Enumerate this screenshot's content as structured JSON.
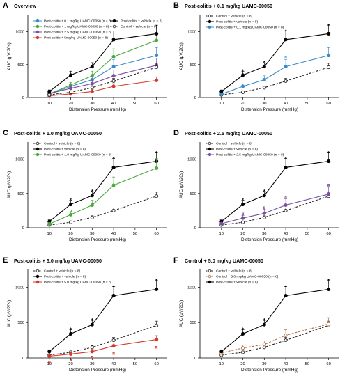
{
  "colors": {
    "control": "#222222",
    "vehicle": "#000000",
    "d01": "#3a8cc8",
    "d10": "#49a83a",
    "d25": "#7a4fa0",
    "d50": "#d33a2a",
    "ctl50": "#b06a3a"
  },
  "chart_data": [
    {
      "letter": "A",
      "title": "Overview",
      "type": "line",
      "xlabel": "Distension Pressure (mmHg)",
      "ylabel": "AUC (μV/20s)",
      "x": [
        10,
        20,
        30,
        40,
        60
      ],
      "xlim": [
        0,
        65
      ],
      "xticks": [
        10,
        20,
        30,
        40,
        50,
        60
      ],
      "ylim": [
        0,
        1250
      ],
      "yticks": [
        0,
        500,
        1000
      ],
      "legend_position": "top",
      "series": [
        {
          "key": "d01",
          "name": "Post-colitis + 0.1 mg/kg UAMC-00050 (n = 8)",
          "style": "solid",
          "color_key": "d01",
          "marker": "filled",
          "values": [
            50,
            170,
            270,
            470,
            640
          ],
          "err": [
            18,
            35,
            60,
            110,
            120
          ]
        },
        {
          "key": "d10",
          "name": "Post-colitis + 1 mg/kg UAMC-00050 (n = 8)",
          "style": "solid",
          "color_key": "d10",
          "marker": "filled",
          "values": [
            55,
            190,
            330,
            620,
            870
          ],
          "err": [
            20,
            40,
            70,
            120,
            140
          ]
        },
        {
          "key": "d25",
          "name": "Post-colitis + 2.5 mg/kg UAMC-00050 (n = 8)",
          "style": "solid",
          "color_key": "d25",
          "marker": "filled",
          "values": [
            60,
            140,
            210,
            330,
            490
          ],
          "err": [
            18,
            40,
            60,
            90,
            110
          ]
        },
        {
          "key": "d50",
          "name": "Post-colitis + 5mg/kg UAMC-00050 (n = 8)",
          "style": "solid",
          "color_key": "d50",
          "marker": "filled",
          "values": [
            25,
            55,
            90,
            170,
            260
          ],
          "err": [
            10,
            20,
            30,
            40,
            55
          ]
        },
        {
          "key": "veh",
          "name": "Post-colitis + vehicle (n = 8)",
          "style": "solid",
          "color_key": "vehicle",
          "marker": "filled",
          "values": [
            90,
            340,
            470,
            880,
            970
          ],
          "err": [
            25,
            60,
            60,
            130,
            130
          ]
        },
        {
          "key": "ctl",
          "name": "Control + vehicle (n = 8)",
          "style": "dashed",
          "color_key": "control",
          "marker": "open",
          "values": [
            40,
            80,
            150,
            250,
            460
          ],
          "err": [
            12,
            18,
            25,
            40,
            60
          ]
        }
      ],
      "annotations": []
    },
    {
      "letter": "B",
      "title": "Post-colitis + 0.1 mg/kg UAMC-00050",
      "type": "line",
      "xlabel": "Distension Pressure (mmHg)",
      "ylabel": "AUC (μV/20s)",
      "x": [
        10,
        20,
        30,
        40,
        60
      ],
      "xlim": [
        0,
        65
      ],
      "xticks": [
        10,
        20,
        30,
        40,
        50,
        60
      ],
      "ylim": [
        0,
        1250
      ],
      "yticks": [
        0,
        500,
        1000
      ],
      "legend_position": "top-left",
      "series": [
        {
          "key": "ctl",
          "name": "Control + vehicle (n = 8)",
          "style": "dashed",
          "color_key": "control",
          "marker": "open",
          "values": [
            40,
            80,
            150,
            250,
            460
          ],
          "err": [
            12,
            18,
            25,
            40,
            60
          ]
        },
        {
          "key": "veh",
          "name": "Post-colitis + vehicle (n = 8)",
          "style": "solid",
          "color_key": "vehicle",
          "marker": "filled",
          "values": [
            90,
            340,
            470,
            880,
            970
          ],
          "err": [
            25,
            60,
            60,
            130,
            130
          ]
        },
        {
          "key": "d01",
          "name": "Post-colitis + 0.1 mg/kg UAMC-00050 (n = 8)",
          "style": "solid",
          "color_key": "d01",
          "marker": "filled",
          "values": [
            50,
            170,
            270,
            470,
            640
          ],
          "err": [
            18,
            35,
            60,
            110,
            120
          ]
        }
      ],
      "annotations": [
        {
          "x": 20,
          "y": 420,
          "text": "*",
          "color_key": "vehicle"
        },
        {
          "x": 30,
          "y": 550,
          "text": "*",
          "color_key": "vehicle"
        },
        {
          "x": 40,
          "y": 1020,
          "text": "*",
          "color_key": "vehicle"
        },
        {
          "x": 60,
          "y": 1110,
          "text": "*",
          "color_key": "vehicle"
        },
        {
          "x": 40,
          "y": 610,
          "text": "¤",
          "color_key": "d01"
        }
      ]
    },
    {
      "letter": "C",
      "title": "Post-colitis + 1.0 mg/kg UAMC-00050",
      "type": "line",
      "xlabel": "Distension Pressure (mmHg)",
      "ylabel": "AUC (μV/20s)",
      "x": [
        10,
        20,
        30,
        40,
        60
      ],
      "xlim": [
        0,
        65
      ],
      "xticks": [
        10,
        20,
        30,
        40,
        50,
        60
      ],
      "ylim": [
        0,
        1250
      ],
      "yticks": [
        0,
        500,
        1000
      ],
      "legend_position": "top-left",
      "series": [
        {
          "key": "ctl",
          "name": "Control + vehicle (n = 8)",
          "style": "dashed",
          "color_key": "control",
          "marker": "open",
          "values": [
            40,
            80,
            150,
            250,
            460
          ],
          "err": [
            12,
            18,
            25,
            40,
            60
          ]
        },
        {
          "key": "veh",
          "name": "Post-colitis + vehicle (n = 8)",
          "style": "solid",
          "color_key": "vehicle",
          "marker": "filled",
          "values": [
            90,
            340,
            470,
            880,
            970
          ],
          "err": [
            25,
            60,
            60,
            130,
            130
          ]
        },
        {
          "key": "d10",
          "name": "Post-colitis + 1.0 mg/kg UAMC-00050 (n = 8)",
          "style": "solid",
          "color_key": "d10",
          "marker": "filled",
          "values": [
            55,
            190,
            330,
            620,
            870
          ],
          "err": [
            20,
            40,
            70,
            120,
            140
          ]
        }
      ],
      "annotations": [
        {
          "x": 20,
          "y": 420,
          "text": "*",
          "color_key": "vehicle"
        },
        {
          "x": 30,
          "y": 550,
          "text": "*",
          "color_key": "vehicle"
        },
        {
          "x": 40,
          "y": 1020,
          "text": "*",
          "color_key": "vehicle"
        },
        {
          "x": 60,
          "y": 1110,
          "text": "*",
          "color_key": "vehicle"
        },
        {
          "x": 20,
          "y": 245,
          "text": "¤",
          "color_key": "d10"
        }
      ]
    },
    {
      "letter": "D",
      "title": "Post-colitis + 2.5 mg/kg UAMC-00050",
      "type": "line",
      "xlabel": "Distension Pressure (mmHg)",
      "ylabel": "AUC (μV/20s)",
      "x": [
        10,
        20,
        30,
        40,
        60
      ],
      "xlim": [
        0,
        65
      ],
      "xticks": [
        10,
        20,
        30,
        40,
        50,
        60
      ],
      "ylim": [
        0,
        1250
      ],
      "yticks": [
        0,
        500,
        1000
      ],
      "legend_position": "top-left",
      "series": [
        {
          "key": "ctl",
          "name": "Control + vehicle (n = 8)",
          "style": "dashed",
          "color_key": "control",
          "marker": "open",
          "values": [
            40,
            80,
            150,
            250,
            460
          ],
          "err": [
            12,
            18,
            25,
            40,
            60
          ]
        },
        {
          "key": "veh",
          "name": "Post-colitis + vehicle (n = 8)",
          "style": "solid",
          "color_key": "vehicle",
          "marker": "filled",
          "values": [
            90,
            340,
            470,
            880,
            970
          ],
          "err": [
            25,
            60,
            60,
            130,
            130
          ]
        },
        {
          "key": "d25",
          "name": "Post-colitis + 2.5 mg/kg UAMC-00050 (n = 8)",
          "style": "solid",
          "color_key": "d25",
          "marker": "filled",
          "values": [
            60,
            140,
            210,
            330,
            490
          ],
          "err": [
            18,
            40,
            60,
            90,
            110
          ]
        }
      ],
      "annotations": [
        {
          "x": 20,
          "y": 420,
          "text": "*",
          "color_key": "vehicle"
        },
        {
          "x": 30,
          "y": 550,
          "text": "*",
          "color_key": "vehicle"
        },
        {
          "x": 40,
          "y": 1020,
          "text": "*",
          "color_key": "vehicle"
        },
        {
          "x": 60,
          "y": 1110,
          "text": "*",
          "color_key": "vehicle"
        },
        {
          "x": 20,
          "y": 200,
          "text": "¤",
          "color_key": "d25"
        },
        {
          "x": 30,
          "y": 290,
          "text": "¤",
          "color_key": "d25"
        },
        {
          "x": 40,
          "y": 440,
          "text": "¤",
          "color_key": "d25"
        },
        {
          "x": 60,
          "y": 620,
          "text": "¤",
          "color_key": "d25"
        }
      ]
    },
    {
      "letter": "E",
      "title": "Post-colitis + 5.0 mg/kg UAMC-00050",
      "type": "line",
      "xlabel": "Distension Pressure (mmHg)",
      "ylabel": "AUC (μV/20s)",
      "x": [
        10,
        20,
        30,
        40,
        60
      ],
      "xlim": [
        0,
        65
      ],
      "xticks": [
        10,
        20,
        30,
        40,
        50,
        60
      ],
      "ylim": [
        0,
        1250
      ],
      "yticks": [
        0,
        500,
        1000
      ],
      "legend_position": "top-left",
      "series": [
        {
          "key": "ctl",
          "name": "Control + vehicle (n = 8)",
          "style": "dashed",
          "color_key": "control",
          "marker": "open",
          "values": [
            40,
            80,
            150,
            250,
            460
          ],
          "err": [
            12,
            18,
            25,
            40,
            60
          ]
        },
        {
          "key": "veh",
          "name": "Post-colitis + vehicle (n = 8)",
          "style": "solid",
          "color_key": "vehicle",
          "marker": "filled",
          "values": [
            90,
            340,
            470,
            880,
            970
          ],
          "err": [
            25,
            60,
            60,
            130,
            130
          ]
        },
        {
          "key": "d50",
          "name": "Post-colitis + 5.0 mg/kg UAMC-00050 (n = 8)",
          "style": "solid",
          "color_key": "d50",
          "marker": "filled",
          "values": [
            25,
            55,
            90,
            170,
            260
          ],
          "err": [
            10,
            20,
            30,
            40,
            55
          ]
        }
      ],
      "annotations": [
        {
          "x": 20,
          "y": 420,
          "text": "*",
          "color_key": "vehicle"
        },
        {
          "x": 30,
          "y": 550,
          "text": "*",
          "color_key": "vehicle"
        },
        {
          "x": 40,
          "y": 1020,
          "text": "*",
          "color_key": "vehicle"
        },
        {
          "x": 60,
          "y": 1110,
          "text": "*",
          "color_key": "vehicle"
        },
        {
          "x": 10,
          "y": -60,
          "text": "¤",
          "color_key": "d50"
        },
        {
          "x": 20,
          "y": -30,
          "text": "¤",
          "color_key": "d50"
        },
        {
          "x": 30,
          "y": 10,
          "text": "¤",
          "color_key": "d50"
        },
        {
          "x": 40,
          "y": 60,
          "text": "¤",
          "color_key": "d50"
        },
        {
          "x": 60,
          "y": 150,
          "text": "¤",
          "color_key": "d50"
        }
      ]
    },
    {
      "letter": "F",
      "title": "Control + 5.0 mg/kg UAMC-00050",
      "type": "line",
      "xlabel": "Distension Pressure (mmHg)",
      "ylabel": "AUC (μV/20s)",
      "x": [
        10,
        20,
        30,
        40,
        60
      ],
      "xlim": [
        0,
        65
      ],
      "xticks": [
        10,
        20,
        30,
        40,
        50,
        60
      ],
      "ylim": [
        0,
        1250
      ],
      "yticks": [
        0,
        500,
        1000
      ],
      "legend_position": "top-left",
      "series": [
        {
          "key": "ctl",
          "name": "Control + vehicle (n = 8)",
          "style": "dashed",
          "color_key": "control",
          "marker": "open",
          "values": [
            40,
            80,
            150,
            250,
            460
          ],
          "err": [
            12,
            18,
            25,
            40,
            60
          ]
        },
        {
          "key": "ctl50",
          "name": "Control + 5.0 mg/kg UAMC-00050 (n = 8)",
          "style": "dashed",
          "color_key": "ctl50",
          "marker": "open",
          "values": [
            70,
            140,
            190,
            320,
            480
          ],
          "err": [
            22,
            40,
            50,
            80,
            90
          ]
        },
        {
          "key": "veh",
          "name": "Post-colitis + vehicle (n = 8)",
          "style": "solid",
          "color_key": "vehicle",
          "marker": "filled",
          "values": [
            90,
            340,
            470,
            880,
            970
          ],
          "err": [
            25,
            60,
            60,
            130,
            130
          ]
        }
      ],
      "annotations": [
        {
          "x": 20,
          "y": 420,
          "text": "*",
          "color_key": "vehicle"
        },
        {
          "x": 30,
          "y": 550,
          "text": "*",
          "color_key": "vehicle"
        },
        {
          "x": 40,
          "y": 1020,
          "text": "*",
          "color_key": "vehicle"
        },
        {
          "x": 60,
          "y": 1110,
          "text": "*",
          "color_key": "vehicle"
        }
      ]
    }
  ]
}
